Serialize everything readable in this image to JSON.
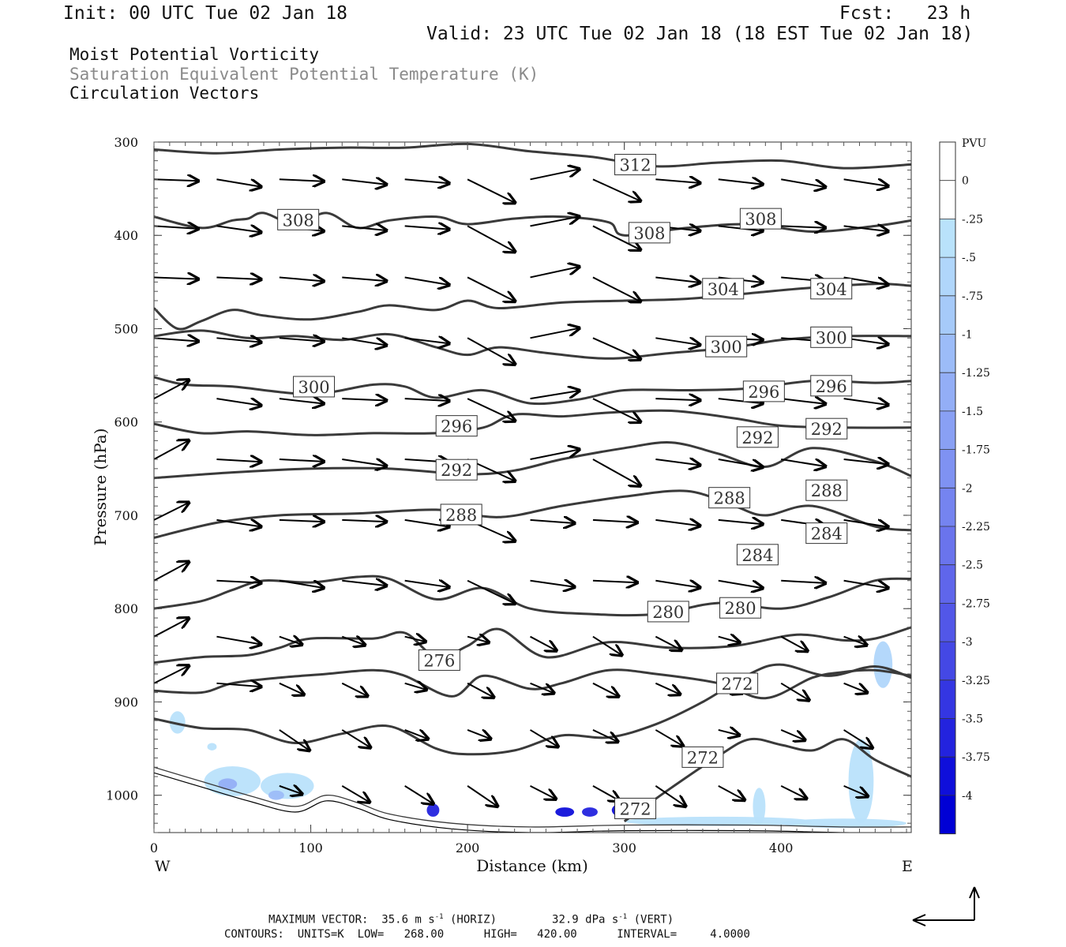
{
  "header": {
    "init": "Init: 00 UTC Tue 02 Jan 18",
    "fcst": "Fcst:   23 h",
    "valid": "Valid: 23 UTC Tue 02 Jan 18 (18 EST Tue 02 Jan 18)"
  },
  "titles": {
    "line1": "Moist Potential Vorticity",
    "line2": "Saturation Equivalent Potential Temperature (K)",
    "line3": "Circulation Vectors"
  },
  "colors": {
    "contour": "#3a3a3a",
    "pv_fill": "#8fb4ff",
    "title2": "#8a8a8a"
  },
  "chart_data": {
    "type": "contour",
    "xlabel": "Distance (km)",
    "ylabel": "Pressure (hPa)",
    "xlim": [
      0,
      483
    ],
    "ylim": [
      300,
      1040
    ],
    "x_ticks": [
      0,
      100,
      200,
      300,
      400
    ],
    "y_ticks": [
      300,
      400,
      500,
      600,
      700,
      800,
      900,
      1000
    ],
    "side_labels": {
      "left": "W",
      "right": "E"
    },
    "colorbar": {
      "title": "PVU",
      "levels": [
        "0",
        "-.25",
        "-.5",
        "-.75",
        "-1",
        "-1.25",
        "-1.5",
        "-1.75",
        "-2",
        "-2.25",
        "-2.5",
        "-2.75",
        "-3",
        "-3.25",
        "-3.5",
        "-3.75",
        "-4"
      ],
      "colors": [
        "#ffffff",
        "#ffffff",
        "#b9e2fb",
        "#b0d6fb",
        "#a6caf9",
        "#9cbcf8",
        "#93aef6",
        "#89a0f4",
        "#7f92f2",
        "#7584f0",
        "#6a74ed",
        "#5f66eb",
        "#5257e8",
        "#4448e5",
        "#3436e2",
        "#2323de",
        "#0f0fda",
        "#0000d5"
      ]
    },
    "contours": [
      {
        "level": 312,
        "points": [
          [
            0,
            308
          ],
          [
            40,
            312
          ],
          [
            80,
            308
          ],
          [
            120,
            306
          ],
          [
            160,
            306
          ],
          [
            200,
            302
          ],
          [
            240,
            310
          ],
          [
            280,
            316
          ],
          [
            320,
            326
          ],
          [
            360,
            322
          ],
          [
            400,
            320
          ],
          [
            440,
            328
          ],
          [
            483,
            324
          ]
        ]
      },
      {
        "level": 308,
        "points": [
          [
            0,
            380
          ],
          [
            30,
            392
          ],
          [
            50,
            384
          ],
          [
            60,
            382
          ],
          [
            70,
            376
          ],
          [
            90,
            388
          ],
          [
            110,
            376
          ],
          [
            130,
            392
          ],
          [
            150,
            384
          ],
          [
            180,
            380
          ],
          [
            200,
            388
          ],
          [
            230,
            382
          ],
          [
            260,
            380
          ],
          [
            290,
            386
          ],
          [
            300,
            400
          ],
          [
            340,
            392
          ],
          [
            380,
            388
          ],
          [
            420,
            396
          ],
          [
            460,
            390
          ],
          [
            483,
            384
          ]
        ]
      },
      {
        "level": 304,
        "points": [
          [
            0,
            478
          ],
          [
            15,
            500
          ],
          [
            30,
            492
          ],
          [
            50,
            480
          ],
          [
            70,
            486
          ],
          [
            100,
            490
          ],
          [
            130,
            482
          ],
          [
            150,
            475
          ],
          [
            180,
            480
          ],
          [
            200,
            470
          ],
          [
            220,
            478
          ],
          [
            260,
            472
          ],
          [
            300,
            470
          ],
          [
            340,
            468
          ],
          [
            380,
            462
          ],
          [
            420,
            456
          ],
          [
            460,
            452
          ],
          [
            483,
            454
          ]
        ]
      },
      {
        "level": 300,
        "points": [
          [
            0,
            508
          ],
          [
            30,
            502
          ],
          [
            60,
            510
          ],
          [
            90,
            508
          ],
          [
            120,
            512
          ],
          [
            150,
            506
          ],
          [
            180,
            520
          ],
          [
            200,
            528
          ],
          [
            220,
            520
          ],
          [
            250,
            526
          ],
          [
            290,
            532
          ],
          [
            330,
            526
          ],
          [
            370,
            520
          ],
          [
            400,
            512
          ],
          [
            440,
            508
          ],
          [
            483,
            508
          ]
        ]
      },
      {
        "level": 296,
        "points": [
          [
            0,
            552
          ],
          [
            20,
            560
          ],
          [
            50,
            562
          ],
          [
            100,
            570
          ],
          [
            140,
            560
          ],
          [
            160,
            562
          ],
          [
            180,
            574
          ],
          [
            210,
            566
          ],
          [
            240,
            580
          ],
          [
            270,
            576
          ],
          [
            300,
            566
          ],
          [
            340,
            566
          ],
          [
            380,
            564
          ],
          [
            420,
            556
          ],
          [
            460,
            558
          ],
          [
            483,
            556
          ]
        ]
      },
      {
        "level": 292,
        "points": [
          [
            0,
            602
          ],
          [
            30,
            612
          ],
          [
            60,
            610
          ],
          [
            100,
            614
          ],
          [
            140,
            612
          ],
          [
            180,
            612
          ],
          [
            210,
            606
          ],
          [
            230,
            592
          ],
          [
            260,
            594
          ],
          [
            290,
            590
          ],
          [
            330,
            588
          ],
          [
            370,
            596
          ],
          [
            400,
            604
          ],
          [
            440,
            606
          ],
          [
            483,
            606
          ]
        ]
      },
      {
        "level": 288,
        "points": [
          [
            0,
            660
          ],
          [
            50,
            654
          ],
          [
            100,
            650
          ],
          [
            150,
            650
          ],
          [
            200,
            656
          ],
          [
            230,
            652
          ],
          [
            260,
            640
          ],
          [
            300,
            628
          ],
          [
            330,
            622
          ],
          [
            360,
            634
          ],
          [
            390,
            648
          ],
          [
            420,
            628
          ],
          [
            460,
            642
          ],
          [
            483,
            658
          ]
        ]
      },
      {
        "level": 284,
        "points": [
          [
            0,
            724
          ],
          [
            40,
            708
          ],
          [
            80,
            700
          ],
          [
            130,
            698
          ],
          [
            180,
            694
          ],
          [
            220,
            702
          ],
          [
            260,
            690
          ],
          [
            300,
            680
          ],
          [
            340,
            674
          ],
          [
            370,
            690
          ],
          [
            390,
            700
          ],
          [
            420,
            690
          ],
          [
            460,
            712
          ],
          [
            483,
            716
          ]
        ]
      },
      {
        "level": 280,
        "points": [
          [
            0,
            800
          ],
          [
            30,
            792
          ],
          [
            50,
            780
          ],
          [
            70,
            770
          ],
          [
            100,
            772
          ],
          [
            130,
            766
          ],
          [
            150,
            768
          ],
          [
            180,
            790
          ],
          [
            210,
            778
          ],
          [
            240,
            800
          ],
          [
            280,
            806
          ],
          [
            320,
            806
          ],
          [
            360,
            794
          ],
          [
            400,
            800
          ],
          [
            430,
            788
          ],
          [
            460,
            770
          ],
          [
            483,
            768
          ]
        ]
      },
      {
        "level": 276,
        "points": [
          [
            0,
            858
          ],
          [
            30,
            852
          ],
          [
            60,
            850
          ],
          [
            80,
            842
          ],
          [
            100,
            832
          ],
          [
            140,
            832
          ],
          [
            160,
            826
          ],
          [
            180,
            852
          ],
          [
            200,
            840
          ],
          [
            220,
            822
          ],
          [
            250,
            852
          ],
          [
            290,
            836
          ],
          [
            330,
            842
          ],
          [
            370,
            840
          ],
          [
            410,
            828
          ],
          [
            440,
            834
          ],
          [
            460,
            832
          ],
          [
            483,
            820
          ]
        ]
      },
      {
        "level": 272,
        "points": [
          [
            0,
            888
          ],
          [
            30,
            890
          ],
          [
            50,
            880
          ],
          [
            80,
            874
          ],
          [
            110,
            870
          ],
          [
            140,
            866
          ],
          [
            160,
            872
          ],
          [
            190,
            894
          ],
          [
            210,
            872
          ],
          [
            240,
            886
          ],
          [
            260,
            880
          ],
          [
            290,
            866
          ],
          [
            320,
            870
          ],
          [
            360,
            880
          ],
          [
            390,
            896
          ],
          [
            420,
            874
          ],
          [
            440,
            868
          ],
          [
            460,
            866
          ],
          [
            483,
            872
          ]
        ]
      },
      {
        "level": 268,
        "points": [
          [
            0,
            918
          ],
          [
            30,
            928
          ],
          [
            60,
            930
          ],
          [
            90,
            944
          ],
          [
            120,
            934
          ],
          [
            150,
            926
          ],
          [
            180,
            950
          ],
          [
            200,
            956
          ],
          [
            230,
            952
          ],
          [
            260,
            936
          ],
          [
            290,
            938
          ],
          [
            320,
            924
          ],
          [
            350,
            900
          ],
          [
            380,
            870
          ],
          [
            400,
            860
          ],
          [
            430,
            872
          ],
          [
            460,
            862
          ],
          [
            483,
            874
          ]
        ]
      },
      {
        "level": 272,
        "points": [
          [
            300,
            1028
          ],
          [
            330,
            992
          ],
          [
            360,
            958
          ],
          [
            380,
            940
          ],
          [
            400,
            946
          ],
          [
            420,
            952
          ],
          [
            440,
            940
          ],
          [
            460,
            962
          ],
          [
            483,
            980
          ]
        ]
      },
      {
        "level": 268,
        "points": [
          [
            0,
            970
          ],
          [
            30,
            985
          ],
          [
            60,
            1000
          ],
          [
            90,
            1012
          ],
          [
            110,
            1000
          ],
          [
            130,
            1008
          ],
          [
            150,
            1020
          ],
          [
            190,
            1030
          ],
          [
            240,
            1034
          ],
          [
            300,
            1032
          ],
          [
            380,
            1032
          ],
          [
            440,
            1034
          ],
          [
            483,
            1034
          ]
        ]
      }
    ],
    "contour_labels": [
      {
        "text": "312",
        "x": 307,
        "p": 325
      },
      {
        "text": "308",
        "x": 92,
        "p": 384
      },
      {
        "text": "308",
        "x": 316,
        "p": 398
      },
      {
        "text": "308",
        "x": 387,
        "p": 383
      },
      {
        "text": "304",
        "x": 363,
        "p": 458
      },
      {
        "text": "304",
        "x": 432,
        "p": 458
      },
      {
        "text": "300",
        "x": 102,
        "p": 563
      },
      {
        "text": "300",
        "x": 365,
        "p": 520
      },
      {
        "text": "300",
        "x": 432,
        "p": 510
      },
      {
        "text": "296",
        "x": 193,
        "p": 605
      },
      {
        "text": "296",
        "x": 389,
        "p": 568
      },
      {
        "text": "296",
        "x": 432,
        "p": 562
      },
      {
        "text": "292",
        "x": 193,
        "p": 652
      },
      {
        "text": "292",
        "x": 385,
        "p": 617
      },
      {
        "text": "292",
        "x": 429,
        "p": 608
      },
      {
        "text": "288",
        "x": 196,
        "p": 700
      },
      {
        "text": "288",
        "x": 367,
        "p": 682
      },
      {
        "text": "288",
        "x": 429,
        "p": 674
      },
      {
        "text": "284",
        "x": 385,
        "p": 743
      },
      {
        "text": "284",
        "x": 429,
        "p": 720
      },
      {
        "text": "280",
        "x": 328,
        "p": 804
      },
      {
        "text": "280",
        "x": 374,
        "p": 800
      },
      {
        "text": "276",
        "x": 182,
        "p": 856
      },
      {
        "text": "272",
        "x": 372,
        "p": 881
      },
      {
        "text": "272",
        "x": 350,
        "p": 960
      },
      {
        "text": "272",
        "x": 307,
        "p": 1015
      }
    ],
    "pv_patches": [
      {
        "x": 15,
        "p": 922,
        "rx": 5,
        "rp": 12,
        "level": "-.25"
      },
      {
        "x": 37,
        "p": 948,
        "rx": 3,
        "rp": 4,
        "level": "-.25"
      },
      {
        "x": 50,
        "p": 985,
        "rx": 18,
        "rp": 16,
        "level": "-.25"
      },
      {
        "x": 47,
        "p": 988,
        "rx": 6,
        "rp": 6,
        "level": "-1.25"
      },
      {
        "x": 85,
        "p": 990,
        "rx": 17,
        "rp": 14,
        "level": "-.25"
      },
      {
        "x": 78,
        "p": 1000,
        "rx": 5,
        "rp": 5,
        "level": "-1"
      },
      {
        "x": 465,
        "p": 860,
        "rx": 6,
        "rp": 25,
        "level": "-.5"
      },
      {
        "x": 451,
        "p": 985,
        "rx": 8,
        "rp": 45,
        "level": "-.25"
      },
      {
        "x": 386,
        "p": 1012,
        "rx": 4,
        "rp": 20,
        "level": "-.25"
      },
      {
        "x": 178,
        "p": 1016,
        "rx": 4,
        "rp": 7,
        "level": "-3.5"
      },
      {
        "x": 262,
        "p": 1018,
        "rx": 6,
        "rp": 5,
        "level": "-3.75"
      },
      {
        "x": 278,
        "p": 1018,
        "rx": 5,
        "rp": 5,
        "level": "-3.5"
      },
      {
        "x": 300,
        "p": 1016,
        "rx": 8,
        "rp": 8,
        "level": "-3.75"
      },
      {
        "x": 360,
        "p": 1028,
        "rx": 60,
        "rp": 5,
        "level": "-.25"
      },
      {
        "x": 440,
        "p": 1030,
        "rx": 40,
        "rp": 5,
        "level": "-.25"
      }
    ],
    "vector_grid": {
      "x": [
        0,
        40,
        80,
        120,
        160,
        200,
        240,
        280,
        320,
        360,
        400,
        440
      ],
      "p": [
        340,
        390,
        445,
        510,
        575,
        640,
        705,
        770,
        830,
        880,
        930,
        990
      ],
      "note": "arrows mostly west-to-east with slight descent; upward in lowest left columns"
    },
    "footer": {
      "max_vector": "MAXIMUM VECTOR:  35.6 m s",
      "max_vector_sup": "-1",
      "max_vector_h": "(HORIZ)",
      "max_vert": "32.9 dPa s",
      "max_vert_sup": "-1",
      "max_vert_v": "(VERT)",
      "contours": "CONTOURS:  UNITS=K  LOW=   268.00      HIGH=   420.00      INTERVAL=     4.0000"
    }
  }
}
